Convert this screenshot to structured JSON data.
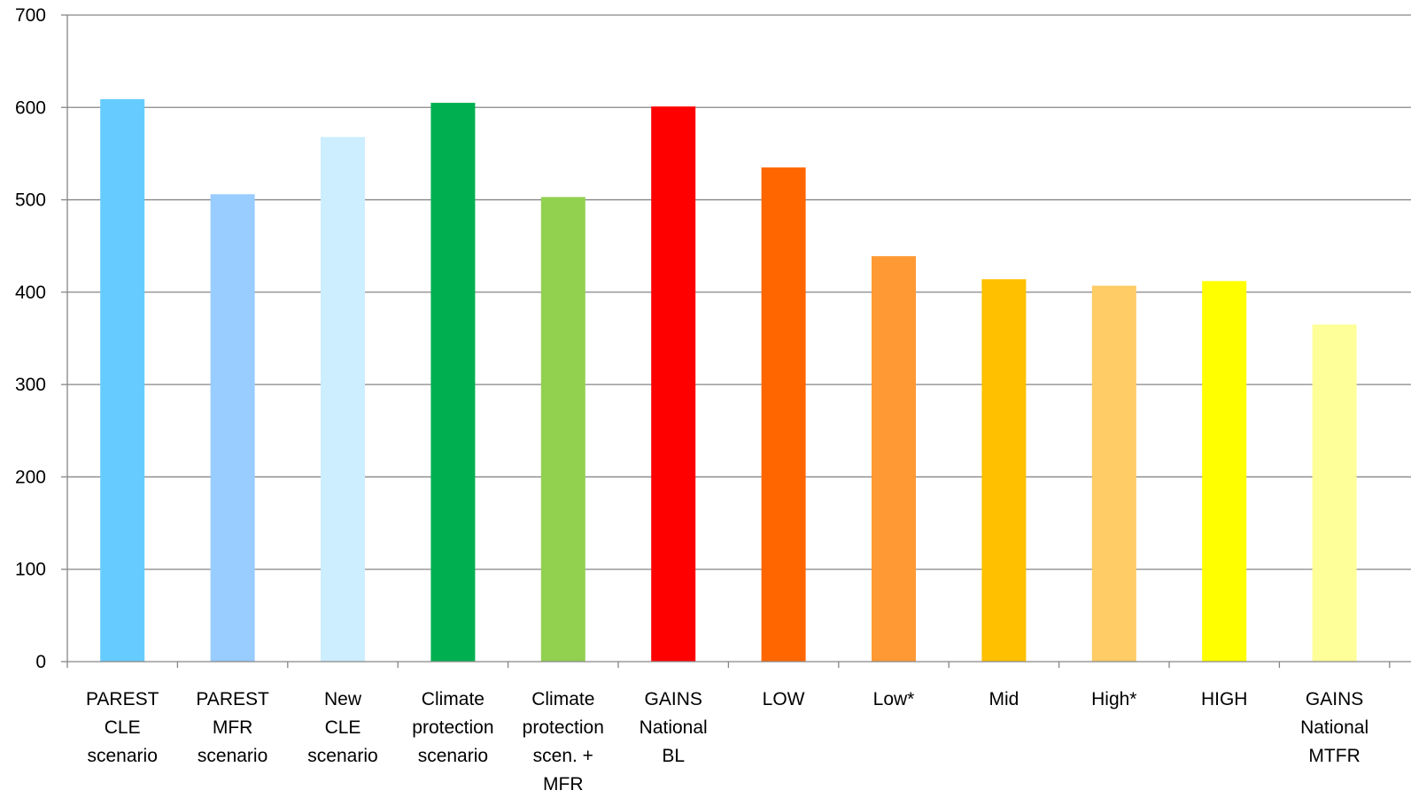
{
  "chart_data": {
    "type": "bar",
    "title": "",
    "xlabel": "",
    "ylabel": "",
    "ylim": [
      0,
      700
    ],
    "yticks": [
      0,
      100,
      200,
      300,
      400,
      500,
      600,
      700
    ],
    "grid": true,
    "legend": "none",
    "categories": [
      "PAREST CLE scenario",
      "PAREST MFR scenario",
      "New CLE scenario",
      "Climate protection scenario",
      "Climate protection scen. + MFR",
      "GAINS National BL",
      "LOW",
      "Low*",
      "Mid",
      "High*",
      "HIGH",
      "GAINS National MTFR"
    ],
    "category_lines": [
      [
        "PAREST",
        "CLE",
        "scenario"
      ],
      [
        "PAREST",
        "MFR",
        "scenario"
      ],
      [
        "New",
        "CLE",
        "scenario"
      ],
      [
        "Climate",
        "protection",
        "scenario"
      ],
      [
        "Climate",
        "protection",
        "scen. +",
        "MFR"
      ],
      [
        "GAINS",
        "National",
        "BL"
      ],
      [
        "LOW"
      ],
      [
        "Low*"
      ],
      [
        "Mid"
      ],
      [
        "High*"
      ],
      [
        "HIGH"
      ],
      [
        "GAINS",
        "National",
        "MTFR"
      ]
    ],
    "values": [
      609,
      506,
      568,
      605,
      503,
      601,
      535,
      439,
      414,
      407,
      412,
      365
    ],
    "colors": [
      "#66ccff",
      "#99ccff",
      "#cceeff",
      "#00b050",
      "#92d050",
      "#ff0000",
      "#ff6600",
      "#ff9933",
      "#ffc000",
      "#ffcc66",
      "#ffff00",
      "#ffff99"
    ]
  },
  "style": {
    "gridline_color": "#868686",
    "axis_color": "#868686",
    "text_color": "#000000"
  }
}
